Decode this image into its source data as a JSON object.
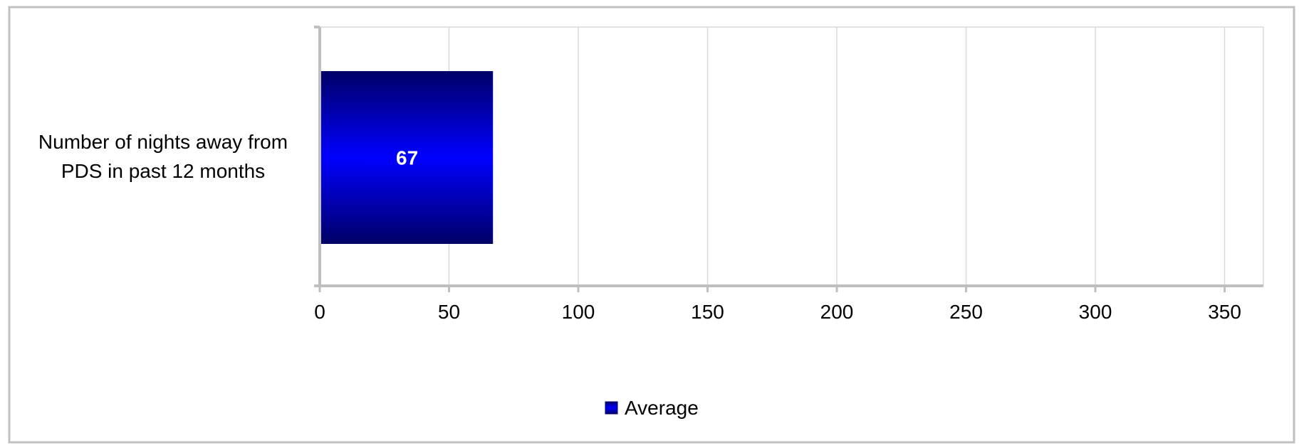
{
  "chart_data": {
    "type": "bar",
    "orientation": "horizontal",
    "categories": [
      "Number of nights away from PDS in past 12 months"
    ],
    "category_label_lines": [
      "Number of nights away from",
      "PDS in past 12 months"
    ],
    "series": [
      {
        "name": "Average",
        "values": [
          67
        ],
        "color": "#0000ff",
        "edge_color": "#000066"
      }
    ],
    "data_labels": [
      "67"
    ],
    "xlim": [
      0,
      365
    ],
    "x_ticks": [
      0,
      50,
      100,
      150,
      200,
      250,
      300,
      350
    ],
    "x_tick_labels": [
      "0",
      "50",
      "100",
      "150",
      "200",
      "250",
      "300",
      "350"
    ],
    "grid": true,
    "legend_position": "bottom"
  }
}
